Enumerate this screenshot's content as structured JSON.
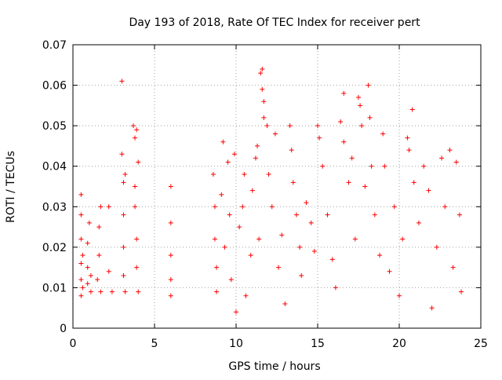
{
  "chart_data": {
    "type": "scatter",
    "title": "Day 193 of 2018, Rate Of TEC Index for receiver pert",
    "xlabel": "GPS time / hours",
    "ylabel": "ROTI / TECUs",
    "xlim": [
      0,
      25
    ],
    "ylim": [
      0,
      0.07
    ],
    "x_ticks": [
      "0",
      "5",
      "10",
      "15",
      "20",
      "25"
    ],
    "y_ticks": [
      "0",
      "0.01",
      "0.02",
      "0.03",
      "0.04",
      "0.05",
      "0.06",
      "0.07"
    ],
    "grid": true,
    "marker": "+",
    "marker_color": "#ff0000",
    "series": [
      {
        "points": [
          [
            0.5,
            0.008
          ],
          [
            0.5,
            0.012
          ],
          [
            0.5,
            0.016
          ],
          [
            0.5,
            0.022
          ],
          [
            0.5,
            0.028
          ],
          [
            0.5,
            0.033
          ],
          [
            0.6,
            0.01
          ],
          [
            0.6,
            0.018
          ],
          [
            0.9,
            0.011
          ],
          [
            0.9,
            0.015
          ],
          [
            0.9,
            0.021
          ],
          [
            1.0,
            0.026
          ],
          [
            1.1,
            0.013
          ],
          [
            1.1,
            0.009
          ],
          [
            1.5,
            0.012
          ],
          [
            1.6,
            0.018
          ],
          [
            1.6,
            0.025
          ],
          [
            1.7,
            0.03
          ],
          [
            1.7,
            0.009
          ],
          [
            2.2,
            0.03
          ],
          [
            2.2,
            0.014
          ],
          [
            2.4,
            0.009
          ],
          [
            3.0,
            0.061
          ],
          [
            3.0,
            0.043
          ],
          [
            3.1,
            0.036
          ],
          [
            3.1,
            0.028
          ],
          [
            3.1,
            0.02
          ],
          [
            3.1,
            0.013
          ],
          [
            3.2,
            0.009
          ],
          [
            3.2,
            0.038
          ],
          [
            3.7,
            0.05
          ],
          [
            3.8,
            0.047
          ],
          [
            3.9,
            0.049
          ],
          [
            3.8,
            0.035
          ],
          [
            3.8,
            0.03
          ],
          [
            3.9,
            0.022
          ],
          [
            3.9,
            0.015
          ],
          [
            4.0,
            0.009
          ],
          [
            4.0,
            0.041
          ],
          [
            6.0,
            0.035
          ],
          [
            6.0,
            0.026
          ],
          [
            6.0,
            0.018
          ],
          [
            6.0,
            0.012
          ],
          [
            6.0,
            0.008
          ],
          [
            8.6,
            0.038
          ],
          [
            8.7,
            0.03
          ],
          [
            8.7,
            0.022
          ],
          [
            8.8,
            0.015
          ],
          [
            8.8,
            0.009
          ],
          [
            9.1,
            0.033
          ],
          [
            9.2,
            0.046
          ],
          [
            9.3,
            0.02
          ],
          [
            9.5,
            0.041
          ],
          [
            9.6,
            0.028
          ],
          [
            9.7,
            0.012
          ],
          [
            9.9,
            0.043
          ],
          [
            10.0,
            0.004
          ],
          [
            10.2,
            0.025
          ],
          [
            10.4,
            0.03
          ],
          [
            10.5,
            0.038
          ],
          [
            10.6,
            0.008
          ],
          [
            10.9,
            0.018
          ],
          [
            11.0,
            0.034
          ],
          [
            11.2,
            0.042
          ],
          [
            11.3,
            0.045
          ],
          [
            11.4,
            0.022
          ],
          [
            11.5,
            0.063
          ],
          [
            11.6,
            0.064
          ],
          [
            11.6,
            0.059
          ],
          [
            11.7,
            0.056
          ],
          [
            11.7,
            0.052
          ],
          [
            11.9,
            0.05
          ],
          [
            12.0,
            0.038
          ],
          [
            12.2,
            0.03
          ],
          [
            12.4,
            0.048
          ],
          [
            12.6,
            0.015
          ],
          [
            12.8,
            0.023
          ],
          [
            13.0,
            0.006
          ],
          [
            13.3,
            0.05
          ],
          [
            13.4,
            0.044
          ],
          [
            13.5,
            0.036
          ],
          [
            13.7,
            0.028
          ],
          [
            13.9,
            0.02
          ],
          [
            14.0,
            0.013
          ],
          [
            14.3,
            0.031
          ],
          [
            14.6,
            0.026
          ],
          [
            14.8,
            0.019
          ],
          [
            15.0,
            0.05
          ],
          [
            15.1,
            0.047
          ],
          [
            15.3,
            0.04
          ],
          [
            15.6,
            0.028
          ],
          [
            15.9,
            0.017
          ],
          [
            16.1,
            0.01
          ],
          [
            16.4,
            0.051
          ],
          [
            16.6,
            0.058
          ],
          [
            16.6,
            0.046
          ],
          [
            16.9,
            0.036
          ],
          [
            17.1,
            0.042
          ],
          [
            17.3,
            0.022
          ],
          [
            17.5,
            0.057
          ],
          [
            17.6,
            0.055
          ],
          [
            17.7,
            0.05
          ],
          [
            17.9,
            0.035
          ],
          [
            18.1,
            0.06
          ],
          [
            18.2,
            0.052
          ],
          [
            18.3,
            0.04
          ],
          [
            18.5,
            0.028
          ],
          [
            18.8,
            0.018
          ],
          [
            19.0,
            0.048
          ],
          [
            19.1,
            0.04
          ],
          [
            19.4,
            0.014
          ],
          [
            19.7,
            0.03
          ],
          [
            20.0,
            0.008
          ],
          [
            20.2,
            0.022
          ],
          [
            20.5,
            0.047
          ],
          [
            20.6,
            0.044
          ],
          [
            20.8,
            0.054
          ],
          [
            20.9,
            0.036
          ],
          [
            21.2,
            0.026
          ],
          [
            21.5,
            0.04
          ],
          [
            21.8,
            0.034
          ],
          [
            22.0,
            0.005
          ],
          [
            22.3,
            0.02
          ],
          [
            22.6,
            0.042
          ],
          [
            22.8,
            0.03
          ],
          [
            23.1,
            0.044
          ],
          [
            23.3,
            0.015
          ],
          [
            23.5,
            0.041
          ],
          [
            23.7,
            0.028
          ],
          [
            23.8,
            0.009
          ]
        ]
      }
    ]
  }
}
